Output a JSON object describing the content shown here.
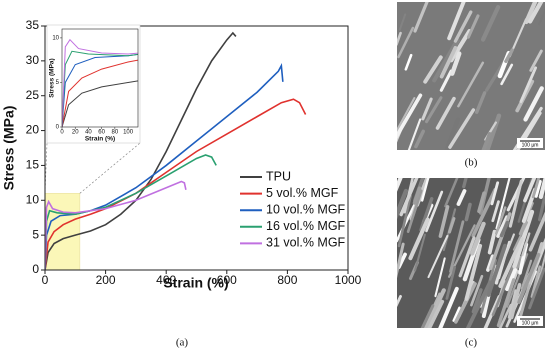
{
  "chart_data": {
    "type": "line",
    "x_label": "Strain (%)",
    "y_label": "Stress (MPa)",
    "xlim": [
      0,
      1000
    ],
    "ylim": [
      0,
      35
    ],
    "xticks": [
      0,
      200,
      400,
      600,
      800,
      1000
    ],
    "yticks": [
      0,
      5,
      10,
      15,
      20,
      25,
      30,
      35
    ],
    "caption": "(a)",
    "series": [
      {
        "name": "TPU",
        "color": "#404040",
        "x": [
          0,
          10,
          30,
          60,
          100,
          150,
          200,
          250,
          300,
          350,
          400,
          450,
          500,
          550,
          600,
          620,
          630
        ],
        "values": [
          0,
          2.5,
          3.8,
          4.5,
          5,
          5.6,
          6.5,
          8,
          10,
          13,
          17,
          21.5,
          26,
          30,
          33,
          34,
          33.5
        ]
      },
      {
        "name": "5 vol.% MGF",
        "color": "#e0322e",
        "x": [
          0,
          10,
          30,
          60,
          100,
          150,
          200,
          300,
          400,
          500,
          600,
          700,
          780,
          820,
          840,
          860
        ],
        "values": [
          0,
          4,
          5.5,
          6.5,
          7.3,
          8,
          8.8,
          11,
          14,
          17,
          19.5,
          22,
          24,
          24.5,
          24,
          22.3
        ]
      },
      {
        "name": "10 vol.% MGF",
        "color": "#1f5fbf",
        "x": [
          0,
          5,
          20,
          50,
          100,
          150,
          200,
          300,
          400,
          500,
          600,
          700,
          770,
          780,
          785
        ],
        "values": [
          0,
          5,
          7,
          7.8,
          8,
          8.5,
          9.3,
          11.8,
          15,
          18.5,
          22,
          25.5,
          28.5,
          29.3,
          27
        ]
      },
      {
        "name": "16 vol.% MGF",
        "color": "#2aa070",
        "x": [
          0,
          5,
          15,
          40,
          100,
          200,
          300,
          400,
          500,
          530,
          550,
          565
        ],
        "values": [
          0,
          7,
          8.5,
          8.2,
          8,
          9,
          11,
          13.5,
          16,
          16.5,
          16.2,
          15
        ]
      },
      {
        "name": "31 vol.% MGF",
        "color": "#c070e0",
        "x": [
          0,
          5,
          12,
          25,
          60,
          100,
          200,
          300,
          400,
          450,
          460,
          465
        ],
        "values": [
          0,
          9,
          9.8,
          8.8,
          8.3,
          8.2,
          8.8,
          10,
          11.8,
          12.7,
          12.5,
          11.5
        ]
      }
    ],
    "inset": {
      "x_label": "Strain (%)",
      "y_label": "Stress (MPa)",
      "xlim": [
        0,
        115
      ],
      "ylim": [
        0,
        11
      ],
      "xticks": [
        0,
        20,
        40,
        60,
        80,
        100
      ],
      "yticks": [
        0,
        5,
        10
      ]
    }
  },
  "images": [
    {
      "caption": "(b)",
      "scale_bar": "100 µm"
    },
    {
      "caption": "(c)",
      "scale_bar": "100 µm"
    }
  ]
}
